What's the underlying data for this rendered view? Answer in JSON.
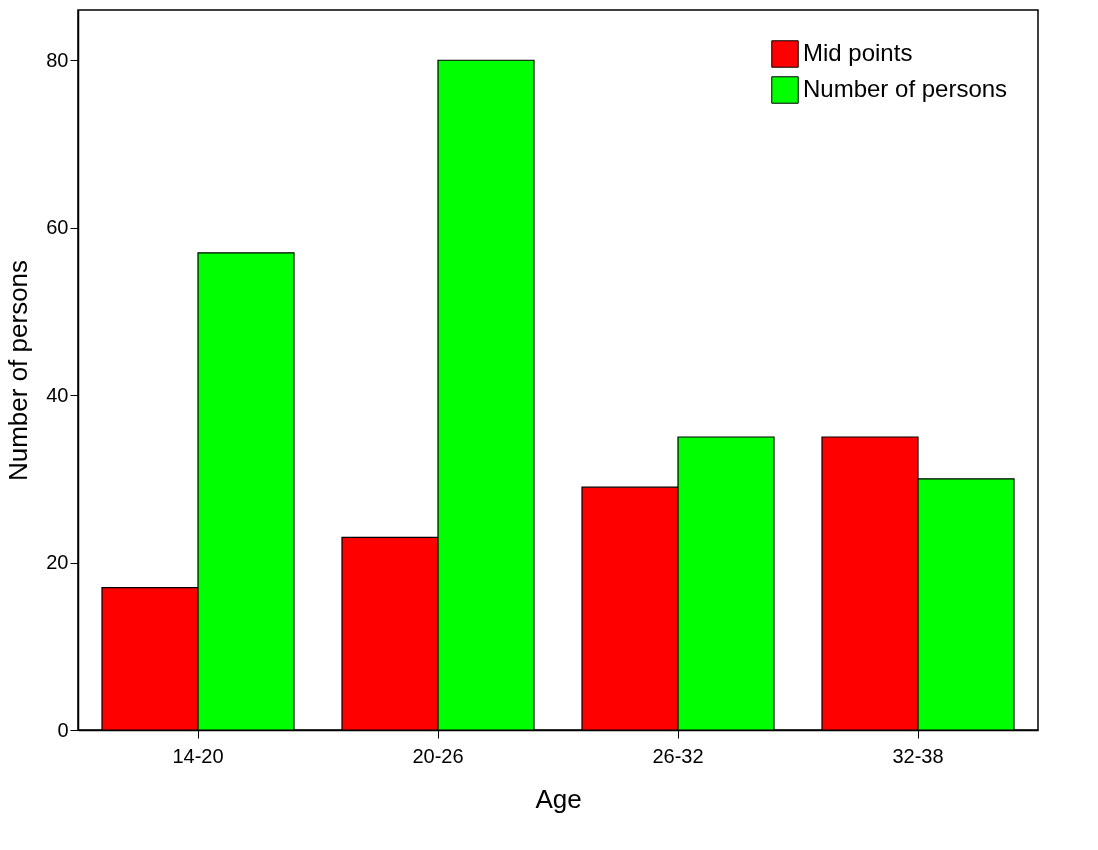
{
  "chart_data": {
    "type": "bar",
    "xlabel": "Age",
    "ylabel": "Number of persons",
    "categories": [
      "14-20",
      "20-26",
      "26-32",
      "32-38"
    ],
    "series": [
      {
        "name": "Mid points",
        "color": "#ff0000",
        "values": [
          17,
          23,
          29,
          35
        ]
      },
      {
        "name": "Number of persons",
        "color": "#00ff00",
        "values": [
          57,
          80,
          35,
          30
        ]
      }
    ],
    "ylim": [
      0,
      86
    ],
    "yticks": [
      0,
      20,
      40,
      60,
      80
    ],
    "grid": false,
    "legend": "top right"
  }
}
